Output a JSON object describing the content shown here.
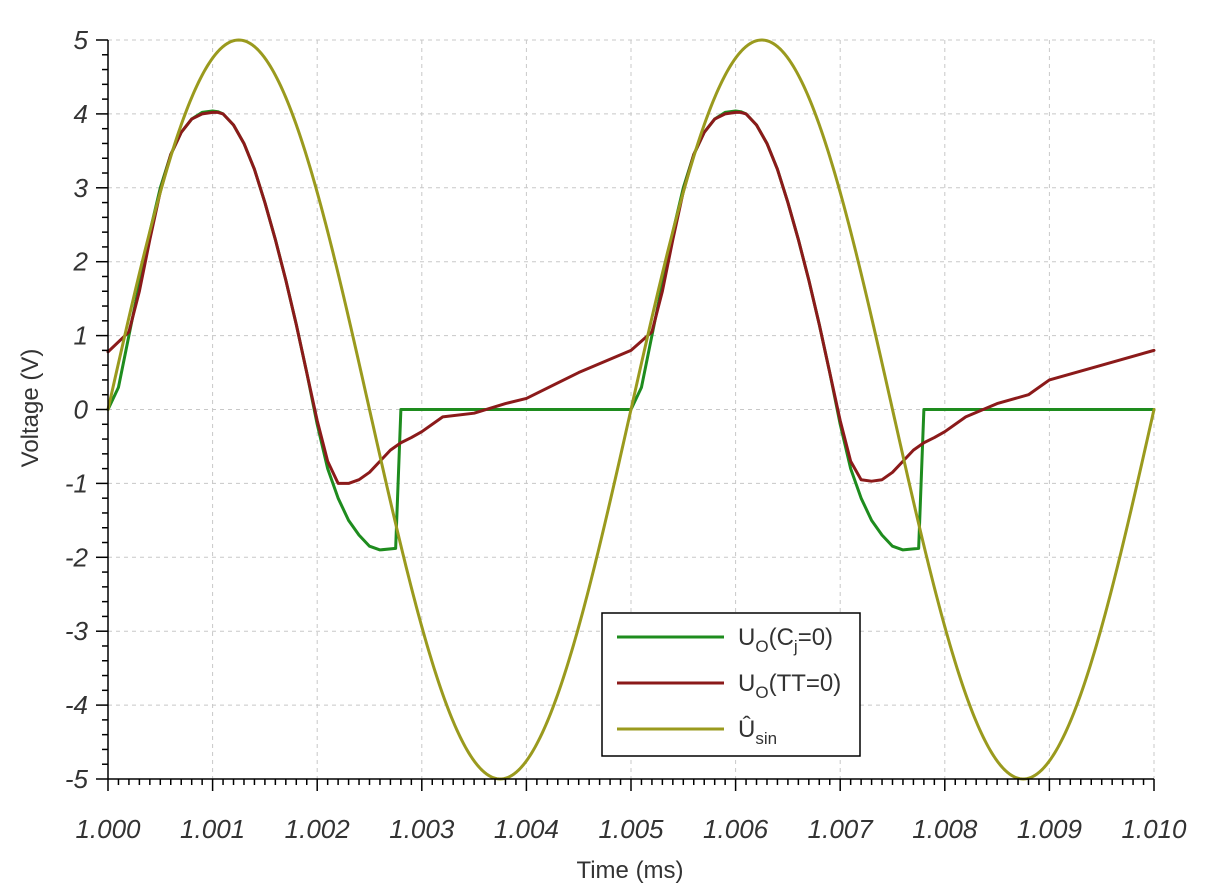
{
  "chart_data": {
    "type": "line",
    "xlabel": "Time (ms)",
    "ylabel": "Voltage (V)",
    "xlim": [
      1.0,
      1.01
    ],
    "ylim": [
      -5,
      5
    ],
    "xticks": [
      "1.000",
      "1.001",
      "1.002",
      "1.003",
      "1.004",
      "1.005",
      "1.006",
      "1.007",
      "1.008",
      "1.009",
      "1.010"
    ],
    "yticks": [
      "5",
      "4",
      "3",
      "2",
      "1",
      "0",
      "-1",
      "-2",
      "-3",
      "-4",
      "-5"
    ],
    "grid": true,
    "legend_position": "bottom-center",
    "series": [
      {
        "name": "UO(Cj=0)",
        "legend": {
          "main": "U",
          "sub1": "O",
          "mid": "(C",
          "sub2": "j",
          "tail": "=0)"
        },
        "color": "#1e8c1e",
        "x": [
          1.0,
          1.0001,
          1.0002,
          1.0003,
          1.0004,
          1.0005,
          1.0006,
          1.0007,
          1.0008,
          1.0009,
          1.001,
          1.00105,
          1.0011,
          1.0012,
          1.0013,
          1.0014,
          1.0015,
          1.0016,
          1.0017,
          1.0018,
          1.0019,
          1.002,
          1.0021,
          1.0022,
          1.0023,
          1.0024,
          1.0025,
          1.0026,
          1.00275,
          1.00276,
          1.0028,
          1.003,
          1.004,
          1.005,
          1.0051,
          1.0052,
          1.0053,
          1.0054,
          1.0055,
          1.0056,
          1.0057,
          1.0058,
          1.0059,
          1.006,
          1.00605,
          1.0061,
          1.0062,
          1.0063,
          1.0064,
          1.0065,
          1.0066,
          1.0067,
          1.0068,
          1.0069,
          1.007,
          1.0071,
          1.0072,
          1.0073,
          1.0074,
          1.0075,
          1.0076,
          1.00775,
          1.00776,
          1.0078,
          1.009,
          1.01
        ],
        "y": [
          0.0,
          0.3,
          1.0,
          1.7,
          2.4,
          3.0,
          3.45,
          3.75,
          3.93,
          4.02,
          4.04,
          4.03,
          4.0,
          3.85,
          3.6,
          3.25,
          2.8,
          2.3,
          1.75,
          1.15,
          0.5,
          -0.2,
          -0.8,
          -1.2,
          -1.5,
          -1.7,
          -1.85,
          -1.9,
          -1.88,
          -1.5,
          0.0,
          0.0,
          0.0,
          0.0,
          0.3,
          1.0,
          1.7,
          2.4,
          3.0,
          3.45,
          3.75,
          3.93,
          4.02,
          4.04,
          4.03,
          4.0,
          3.85,
          3.6,
          3.25,
          2.8,
          2.3,
          1.75,
          1.15,
          0.5,
          -0.2,
          -0.8,
          -1.2,
          -1.5,
          -1.7,
          -1.85,
          -1.9,
          -1.88,
          -1.5,
          0.0,
          0.0,
          0.0
        ]
      },
      {
        "name": "UO(TT=0)",
        "legend": {
          "main": "U",
          "sub1": "O",
          "mid": "(TT=0)",
          "sub2": "",
          "tail": ""
        },
        "color": "#8b1a1a",
        "x": [
          1.0,
          1.0002,
          1.0003,
          1.0004,
          1.0005,
          1.0006,
          1.0007,
          1.0008,
          1.0009,
          1.001,
          1.00105,
          1.0011,
          1.0012,
          1.0013,
          1.0014,
          1.0015,
          1.0016,
          1.0017,
          1.0018,
          1.0019,
          1.002,
          1.0021,
          1.0022,
          1.0023,
          1.0024,
          1.0025,
          1.0026,
          1.0027,
          1.0028,
          1.0029,
          1.003,
          1.0032,
          1.0035,
          1.0038,
          1.004,
          1.0045,
          1.005,
          1.0052,
          1.0053,
          1.0054,
          1.0055,
          1.0056,
          1.0057,
          1.0058,
          1.0059,
          1.006,
          1.00605,
          1.0061,
          1.0062,
          1.0063,
          1.0064,
          1.0065,
          1.0066,
          1.0067,
          1.0068,
          1.0069,
          1.007,
          1.0071,
          1.0072,
          1.0073,
          1.0074,
          1.0075,
          1.0076,
          1.0077,
          1.0078,
          1.0079,
          1.008,
          1.0082,
          1.0085,
          1.0088,
          1.009,
          1.0095,
          1.01
        ],
        "y": [
          0.78,
          1.05,
          1.6,
          2.3,
          2.95,
          3.45,
          3.75,
          3.93,
          4.0,
          4.02,
          4.02,
          4.0,
          3.85,
          3.6,
          3.25,
          2.8,
          2.3,
          1.75,
          1.15,
          0.5,
          -0.15,
          -0.7,
          -1.0,
          -1.0,
          -0.95,
          -0.85,
          -0.7,
          -0.55,
          -0.45,
          -0.38,
          -0.3,
          -0.1,
          -0.05,
          0.08,
          0.15,
          0.5,
          0.8,
          1.05,
          1.6,
          2.3,
          2.95,
          3.45,
          3.75,
          3.93,
          4.0,
          4.02,
          4.02,
          4.0,
          3.85,
          3.6,
          3.25,
          2.8,
          2.3,
          1.75,
          1.15,
          0.5,
          -0.15,
          -0.7,
          -0.95,
          -0.97,
          -0.95,
          -0.85,
          -0.7,
          -0.55,
          -0.45,
          -0.38,
          -0.3,
          -0.1,
          0.08,
          0.2,
          0.4,
          0.6,
          0.8
        ]
      },
      {
        "name": "Ûsin",
        "legend": {
          "main": "Û",
          "sub1": "sin",
          "mid": "",
          "sub2": "",
          "tail": ""
        },
        "color": "#9a9a1e",
        "function": "5*sin(2*pi*200*(t-1.000))",
        "amplitude": 5,
        "period_ms": 0.005,
        "x_start": 1.0,
        "x_end": 1.01
      }
    ]
  }
}
